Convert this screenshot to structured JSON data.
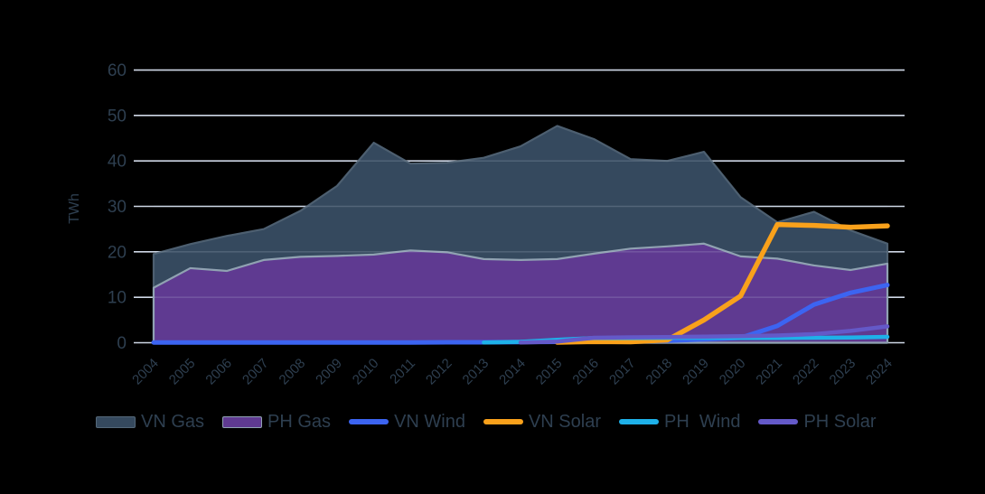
{
  "chart_data": {
    "type": "area+line",
    "title": "",
    "ylabel": "TWh",
    "ylim": [
      0,
      60
    ],
    "yticks": [
      0,
      10,
      20,
      30,
      40,
      50,
      60
    ],
    "grid": true,
    "legend_position": "bottom",
    "x": [
      2004,
      2005,
      2006,
      2007,
      2008,
      2009,
      2010,
      2011,
      2012,
      2013,
      2014,
      2015,
      2016,
      2017,
      2018,
      2019,
      2020,
      2021,
      2022,
      2023,
      2024
    ],
    "series": [
      {
        "name": "VN Gas",
        "type": "area",
        "color": "#35495e",
        "stroke": "#4d5f70",
        "legend_border": "#546879",
        "values": [
          19.5,
          21.7,
          23.5,
          25.0,
          29.0,
          34.5,
          44.0,
          39.4,
          39.6,
          40.7,
          43.2,
          47.7,
          44.8,
          40.4,
          40.0,
          42.0,
          32.0,
          26.5,
          28.8,
          24.7,
          21.8
        ]
      },
      {
        "name": "PH Gas",
        "type": "area",
        "color": "#5f3a91",
        "stroke": "#90a2b2",
        "legend_border": "#90a2b2",
        "values": [
          12.1,
          16.4,
          15.8,
          18.2,
          18.9,
          19.1,
          19.4,
          20.3,
          19.9,
          18.4,
          18.2,
          18.4,
          19.6,
          20.7,
          21.2,
          21.8,
          19.0,
          18.5,
          17.0,
          16.0,
          17.4
        ]
      },
      {
        "name": "VN Wind",
        "type": "line",
        "color": "#3c64f1",
        "values": [
          0.05,
          0.05,
          0.05,
          0.05,
          0.05,
          0.05,
          0.05,
          0.05,
          0.1,
          0.1,
          0.15,
          0.2,
          0.25,
          0.3,
          0.45,
          0.75,
          1.1,
          3.7,
          8.4,
          11.0,
          12.7
        ]
      },
      {
        "name": "VN Solar",
        "type": "line",
        "color": "#f9a11b",
        "values": [
          null,
          null,
          null,
          null,
          null,
          null,
          null,
          null,
          null,
          null,
          null,
          0.1,
          0.25,
          0.2,
          0.6,
          5.0,
          10.3,
          26.0,
          25.8,
          25.4,
          25.7
        ]
      },
      {
        "name": "PH  Wind",
        "type": "line",
        "color": "#1eb1e9",
        "values": [
          null,
          null,
          null,
          null,
          null,
          null,
          null,
          null,
          null,
          0.05,
          0.2,
          0.65,
          1.05,
          1.05,
          1.1,
          1.1,
          1.05,
          1.05,
          1.1,
          1.15,
          1.3
        ]
      },
      {
        "name": "PH Solar",
        "type": "line",
        "color": "#6459c8",
        "values": [
          null,
          null,
          null,
          null,
          null,
          null,
          null,
          null,
          null,
          null,
          0.05,
          0.25,
          1.1,
          1.2,
          1.25,
          1.35,
          1.45,
          1.6,
          1.9,
          2.6,
          3.6
        ]
      }
    ],
    "colors": {
      "background": "#000000",
      "grid": "#cfd8e6",
      "text": "#2e3f50"
    }
  }
}
